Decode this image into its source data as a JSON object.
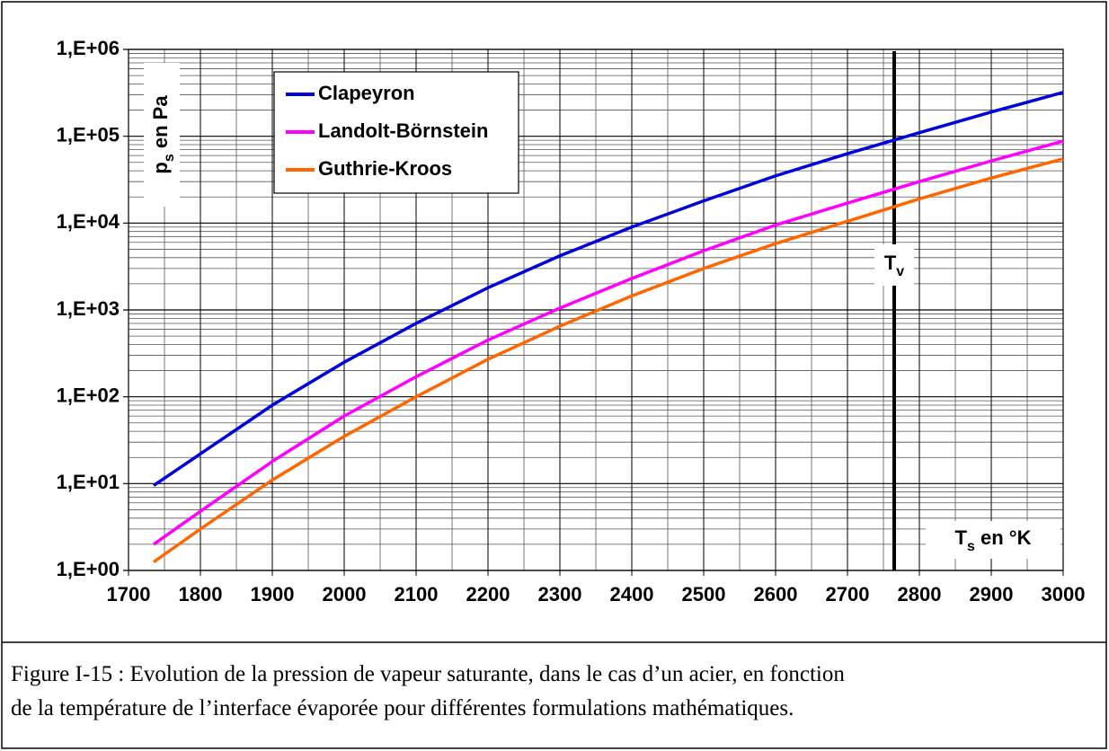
{
  "chart_data": {
    "type": "line",
    "x": [
      1735,
      1800,
      1900,
      2000,
      2100,
      2200,
      2300,
      2400,
      2500,
      2600,
      2700,
      2800,
      2900,
      3000
    ],
    "series": [
      {
        "name": "Clapeyron",
        "color": "#0000dd",
        "values": [
          9.5,
          22,
          80,
          250,
          700,
          1800,
          4200,
          9000,
          18000,
          35000,
          63000,
          110000,
          190000,
          320000
        ]
      },
      {
        "name": "Landolt-Börnstein",
        "color": "#ff00ff",
        "values": [
          2.0,
          4.8,
          18,
          60,
          170,
          450,
          1050,
          2300,
          4800,
          9500,
          17000,
          30000,
          52000,
          88000
        ]
      },
      {
        "name": "Guthrie-Kroos",
        "color": "#ff6600",
        "values": [
          1.25,
          3.0,
          11,
          35,
          100,
          270,
          650,
          1450,
          3000,
          5800,
          10500,
          19000,
          33000,
          55000
        ]
      }
    ],
    "xlim": [
      1700,
      3000
    ],
    "xticks": [
      1700,
      1800,
      1900,
      2000,
      2100,
      2200,
      2300,
      2400,
      2500,
      2600,
      2700,
      2800,
      2900,
      3000
    ],
    "ylim": [
      1,
      1000000
    ],
    "yticks": [
      {
        "value": 1,
        "label": "1,E+00"
      },
      {
        "value": 10,
        "label": "1,E+01"
      },
      {
        "value": 100,
        "label": "1,E+02"
      },
      {
        "value": 1000,
        "label": "1,E+03"
      },
      {
        "value": 10000,
        "label": "1,E+04"
      },
      {
        "value": 100000,
        "label": "1,E+05"
      },
      {
        "value": 1000000,
        "label": "1,E+06"
      }
    ],
    "log_y": true,
    "grid": true,
    "legend": "upper left",
    "y_label": {
      "main": "p",
      "sub": "s",
      "suffix": " en Pa"
    },
    "x_label": {
      "main": "T",
      "sub": "s",
      "suffix": " en °K"
    },
    "vline": {
      "x": 2765,
      "color": "#000000",
      "label": {
        "main": "T",
        "sub": "v"
      }
    }
  },
  "caption": [
    "Figure I-15 : Evolution de la pression de vapeur saturante, dans le cas d’un acier, en fonction",
    "de la température de l’interface évaporée pour différentes formulations mathématiques."
  ]
}
